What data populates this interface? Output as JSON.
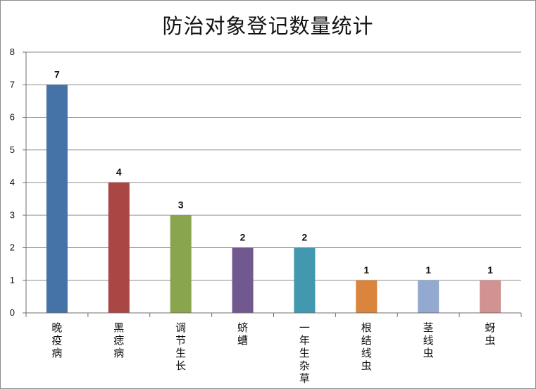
{
  "chart_data": {
    "type": "bar",
    "title": "防治对象登记数量统计",
    "categories": [
      "晚疫病",
      "黑痣病",
      "调节生长",
      "蛴螬",
      "一年生杂草",
      "根结线虫",
      "茎线虫",
      "蚜虫"
    ],
    "values": [
      7,
      4,
      3,
      2,
      2,
      1,
      1,
      1
    ],
    "colors": [
      "#4572a7",
      "#aa4643",
      "#89a54e",
      "#71588f",
      "#4198af",
      "#db843d",
      "#93a9cf",
      "#d19392"
    ],
    "ylim": [
      0,
      8
    ],
    "yticks": [
      0,
      1,
      2,
      3,
      4,
      5,
      6,
      7,
      8
    ],
    "grid": true,
    "legend": "none",
    "data_labels": true,
    "xlabel": "",
    "ylabel": ""
  }
}
